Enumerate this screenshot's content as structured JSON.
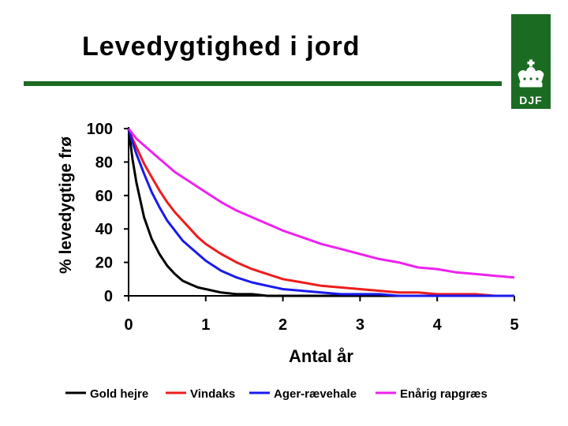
{
  "slide": {
    "title": "Levedygtighed i jord"
  },
  "logo": {
    "text": "DJF",
    "icon": "crown-icon"
  },
  "colors": {
    "accent_green": "#1c6b22"
  },
  "chart_data": {
    "type": "line",
    "title": "",
    "xlabel": "Antal år",
    "ylabel": "% levedygtige frø",
    "xlim": [
      0,
      5
    ],
    "ylim": [
      0,
      100
    ],
    "xticks": [
      "0",
      "1",
      "2",
      "3",
      "4",
      "5"
    ],
    "yticks": [
      "0",
      "20",
      "40",
      "60",
      "80",
      "100"
    ],
    "grid": false,
    "legend": "bottom",
    "x": [
      0,
      0.05,
      0.1,
      0.2,
      0.3,
      0.4,
      0.5,
      0.6,
      0.7,
      0.8,
      0.9,
      1.0,
      1.2,
      1.4,
      1.6,
      1.8,
      2.0,
      2.25,
      2.5,
      2.75,
      3.0,
      3.25,
      3.5,
      3.75,
      4.0,
      4.25,
      4.5,
      4.75,
      5.0
    ],
    "series": [
      {
        "name": "Gold hejre",
        "color": "#000000",
        "values": [
          100,
          82,
          68,
          47,
          34,
          25,
          18,
          13,
          9,
          7,
          5,
          4,
          2,
          1,
          1,
          0,
          0,
          0,
          0,
          0,
          0,
          0,
          0,
          0,
          0,
          0,
          0,
          0,
          0
        ]
      },
      {
        "name": "Vindaks",
        "color": "#ee1c1c",
        "values": [
          100,
          94,
          89,
          79,
          71,
          63,
          56,
          50,
          45,
          40,
          35,
          31,
          25,
          20,
          16,
          13,
          10,
          8,
          6,
          5,
          4,
          3,
          2,
          2,
          1,
          1,
          1,
          0,
          0
        ]
      },
      {
        "name": "Ager-rævehale",
        "color": "#1a1aee",
        "values": [
          100,
          92,
          85,
          73,
          62,
          53,
          45,
          39,
          33,
          29,
          25,
          21,
          15,
          11,
          8,
          6,
          4,
          3,
          2,
          1,
          1,
          1,
          0,
          0,
          0,
          0,
          0,
          0,
          0
        ]
      },
      {
        "name": "Enårig rapgræs",
        "color": "#ee22ee",
        "values": [
          100,
          97,
          94,
          90,
          86,
          82,
          78,
          74,
          71,
          68,
          65,
          62,
          56,
          51,
          47,
          43,
          39,
          35,
          31,
          28,
          25,
          22,
          20,
          17,
          16,
          14,
          13,
          12,
          11
        ]
      }
    ]
  }
}
